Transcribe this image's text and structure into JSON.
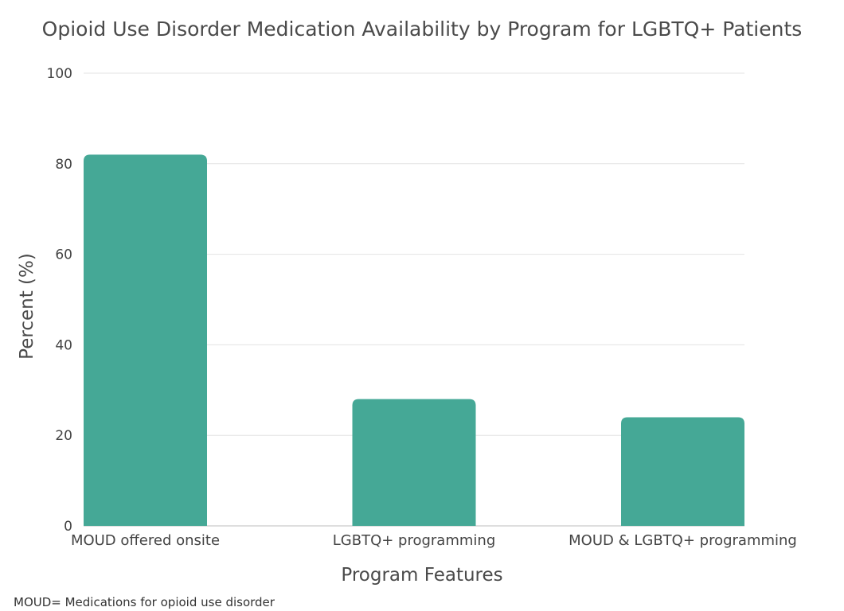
{
  "chart_data": {
    "type": "bar",
    "title": "Opioid Use Disorder Medication Availability by Program for LGBTQ+ Patients",
    "xlabel": "Program Features",
    "ylabel": "Percent (%)",
    "categories": [
      "MOUD offered onsite",
      "LGBTQ+ programming",
      "MOUD & LGBTQ+ programming"
    ],
    "values": [
      82,
      28,
      24
    ],
    "ylim": [
      0,
      100
    ],
    "yticks": [
      0,
      20,
      40,
      60,
      80,
      100
    ],
    "grid": true,
    "bar_color": "#45a896"
  },
  "footnote": "MOUD= Medications for opioid use disorder"
}
